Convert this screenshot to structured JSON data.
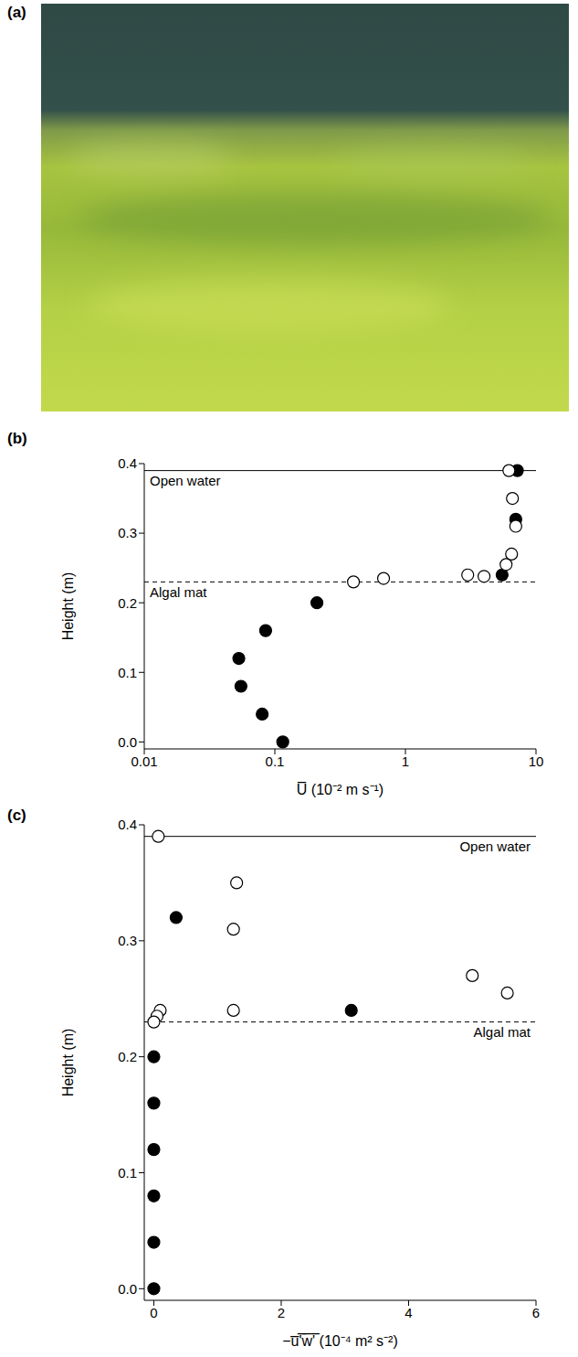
{
  "photo": {
    "panel": "(a)"
  },
  "chart_data": [
    {
      "panel": "(b)",
      "type": "scatter",
      "x_label": "U̅ (10⁻² m s⁻¹)",
      "y_label": "Height (m)",
      "log": "x",
      "grid": false,
      "xlim": [
        0.01,
        10
      ],
      "xticks": [
        0.01,
        0.1,
        1,
        10
      ],
      "ylim": [
        -0.01,
        0.4
      ],
      "yticks": [
        {
          "value": 0,
          "label": "0.0"
        },
        0.1,
        0.2,
        0.3,
        0.4
      ],
      "annotations": [
        {
          "text": "Open water",
          "y": 0.39,
          "line_style": "solid"
        },
        {
          "text": "Algal mat",
          "y": 0.23,
          "line_style": "dashed"
        }
      ],
      "series": [
        {
          "marker": "filled circle",
          "color": "#000000",
          "x": [
            0.115,
            0.08,
            0.055,
            0.053,
            0.085,
            0.21,
            5.5,
            7.0,
            7.2
          ],
          "values": [
            0.0,
            0.04,
            0.08,
            0.12,
            0.16,
            0.2,
            0.24,
            0.32,
            0.39
          ]
        },
        {
          "marker": "open circle",
          "color": "#000000",
          "x": [
            0.4,
            0.68,
            3.0,
            4.0,
            5.9,
            6.5,
            7.0,
            6.6,
            6.2
          ],
          "values": [
            0.23,
            0.235,
            0.24,
            0.238,
            0.255,
            0.27,
            0.31,
            0.35,
            0.39
          ]
        }
      ]
    },
    {
      "panel": "(c)",
      "type": "scatter",
      "x_label": "−u̅'̅w̅'̅ (10⁻⁴ m² s⁻²)",
      "y_label": "Height (m)",
      "grid": false,
      "xlim": [
        -0.15,
        6
      ],
      "xticks": [
        0,
        2,
        4,
        6
      ],
      "ylim": [
        -0.01,
        0.4
      ],
      "yticks": [
        {
          "value": 0,
          "label": "0.0"
        },
        0.1,
        0.2,
        0.3,
        0.4
      ],
      "annotations": [
        {
          "text": "Open water",
          "y": 0.39,
          "line_style": "solid"
        },
        {
          "text": "Algal mat",
          "y": 0.23,
          "line_style": "dashed"
        }
      ],
      "series": [
        {
          "marker": "filled circle",
          "color": "#000000",
          "x": [
            0,
            0,
            0,
            0,
            0,
            0,
            3.1,
            0.35
          ],
          "values": [
            0.0,
            0.04,
            0.08,
            0.12,
            0.16,
            0.2,
            0.24,
            0.32
          ]
        },
        {
          "marker": "open circle",
          "color": "#000000",
          "x": [
            0.07,
            1.3,
            1.25,
            5.0,
            5.55,
            1.25,
            0.1,
            0.05,
            0
          ],
          "values": [
            0.39,
            0.35,
            0.31,
            0.27,
            0.255,
            0.24,
            0.24,
            0.235,
            0.23
          ]
        }
      ]
    }
  ]
}
